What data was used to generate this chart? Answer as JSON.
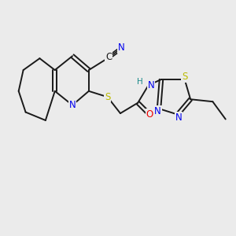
{
  "background_color": "#ebebeb",
  "bond_color": "#1a1a1a",
  "atom_colors": {
    "N": "#0000ee",
    "S": "#bbbb00",
    "O": "#ee0000",
    "C": "#1a1a1a",
    "H": "#1a8a8a"
  },
  "figsize": [
    3.0,
    3.0
  ],
  "dpi": 100
}
